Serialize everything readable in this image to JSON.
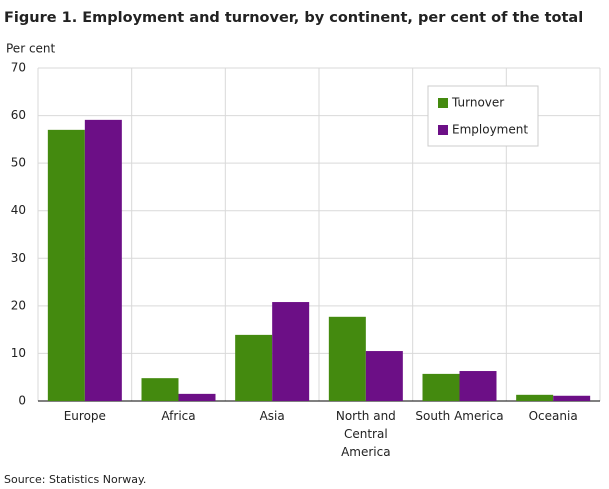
{
  "chart_data": {
    "type": "bar",
    "title": "Figure 1. Employment and turnover, by continent, per cent of the total",
    "y_label": "Per cent",
    "source": "Source: Statistics Norway.",
    "categories": [
      "Europe",
      "Africa",
      "Asia",
      "North and Central America",
      "South America",
      "Oceania"
    ],
    "series": [
      {
        "name": "Turnover",
        "color": "#448a0f",
        "values": [
          57.0,
          4.8,
          13.9,
          17.7,
          5.7,
          1.3
        ]
      },
      {
        "name": "Employment",
        "color": "#6c0f86",
        "values": [
          59.1,
          1.5,
          20.8,
          10.5,
          6.3,
          1.1
        ]
      }
    ],
    "ylim": [
      0,
      70
    ],
    "yticks": [
      0,
      10,
      20,
      30,
      40,
      50,
      60,
      70
    ],
    "grid": true,
    "legend": "upper right"
  }
}
